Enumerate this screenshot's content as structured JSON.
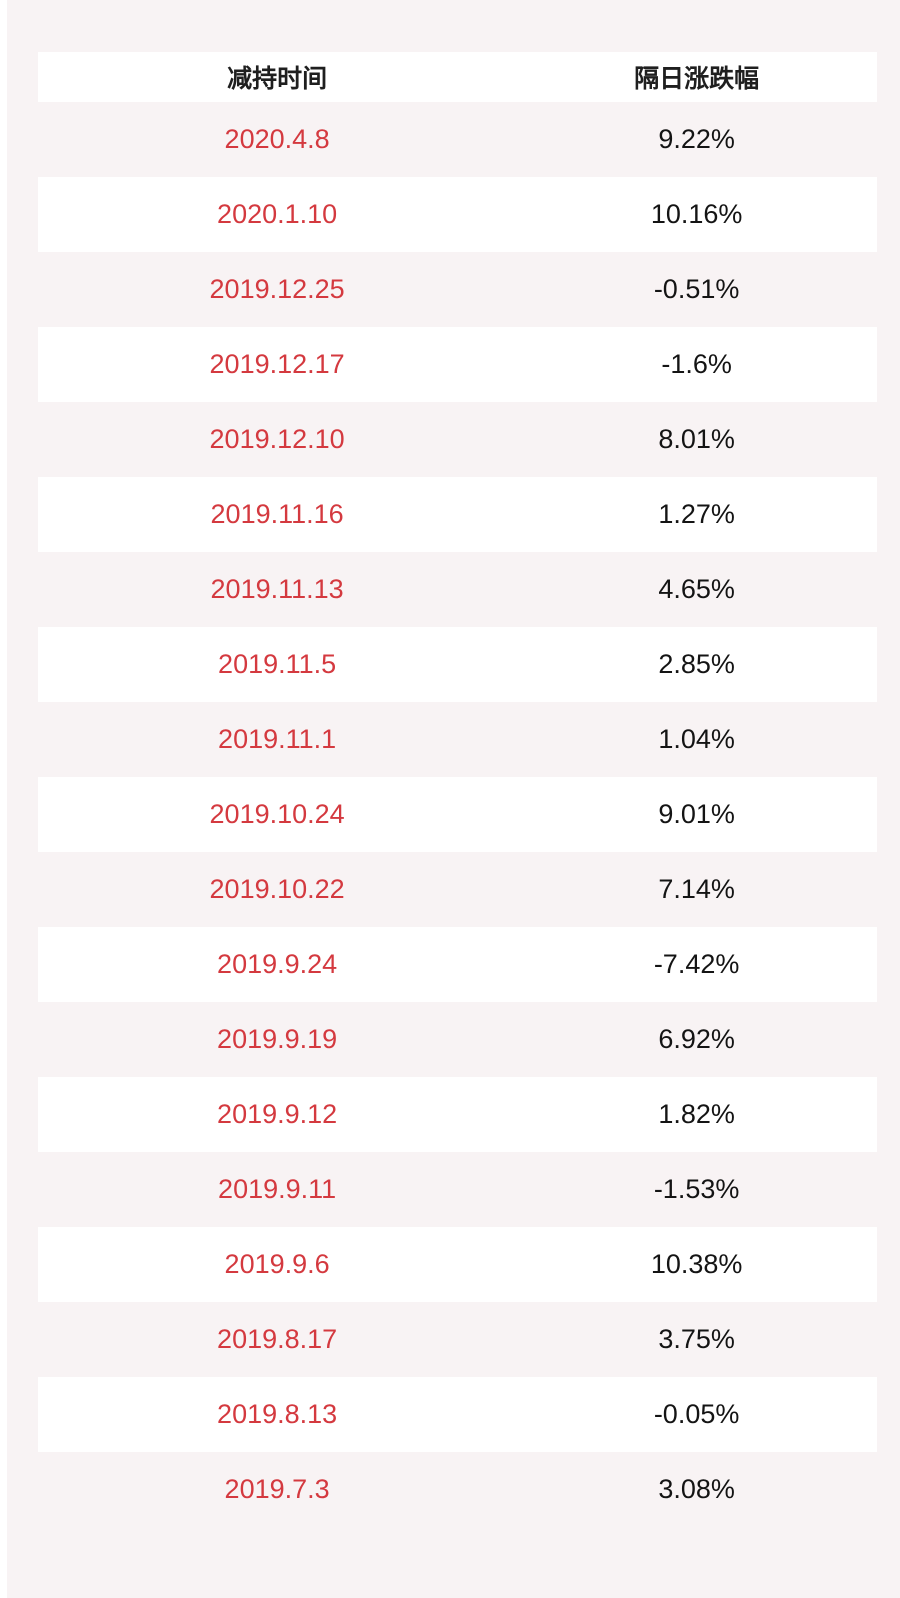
{
  "chart_data": {
    "type": "table",
    "title": "",
    "columns": [
      "减持时间",
      "隔日涨跌幅"
    ],
    "rows": [
      {
        "date": "2020.4.8",
        "change": "9.22%"
      },
      {
        "date": "2020.1.10",
        "change": "10.16%"
      },
      {
        "date": "2019.12.25",
        "change": "-0.51%"
      },
      {
        "date": "2019.12.17",
        "change": "-1.6%"
      },
      {
        "date": "2019.12.10",
        "change": "8.01%"
      },
      {
        "date": "2019.11.16",
        "change": "1.27%"
      },
      {
        "date": "2019.11.13",
        "change": "4.65%"
      },
      {
        "date": "2019.11.5",
        "change": "2.85%"
      },
      {
        "date": "2019.11.1",
        "change": "1.04%"
      },
      {
        "date": "2019.10.24",
        "change": "9.01%"
      },
      {
        "date": "2019.10.22",
        "change": "7.14%"
      },
      {
        "date": "2019.9.24",
        "change": "-7.42%"
      },
      {
        "date": "2019.9.19",
        "change": "6.92%"
      },
      {
        "date": "2019.9.12",
        "change": "1.82%"
      },
      {
        "date": "2019.9.11",
        "change": "-1.53%"
      },
      {
        "date": "2019.9.6",
        "change": "10.38%"
      },
      {
        "date": "2019.8.17",
        "change": "3.75%"
      },
      {
        "date": "2019.8.13",
        "change": "-0.05%"
      },
      {
        "date": "2019.7.3",
        "change": "3.08%"
      }
    ]
  },
  "table": {
    "header": {
      "date_label": "减持时间",
      "change_label": "隔日涨跌幅"
    }
  },
  "colors": {
    "page_background": "#f8f3f4",
    "row_alt_background": "#ffffff",
    "date_text": "#d4393f",
    "change_text": "#141414",
    "header_text": "#1f1f1f"
  }
}
